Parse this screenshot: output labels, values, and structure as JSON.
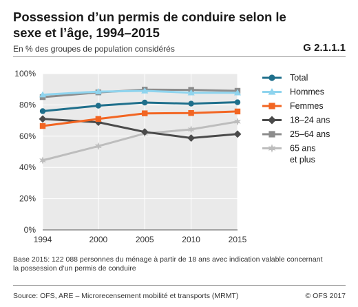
{
  "header": {
    "title": "Possession d’un permis de conduire selon le sexe et l’âge, 1994–2015",
    "subtitle": "En % des groupes de population considérés",
    "code": "G 2.1.1.1"
  },
  "footer": {
    "note_line1": "Base 2015: 122 088 personnes du ménage à partir de 18 ans avec indication valable concernant",
    "note_line2": "la possession d’un permis de conduire",
    "source": "Source: OFS, ARE – Microrecensement mobilité et transports (MRMT)",
    "copyright": "© OFS 2017"
  },
  "chart_data": {
    "type": "line",
    "x": [
      1994,
      2000,
      2005,
      2010,
      2015
    ],
    "x_tick_labels": [
      "1994",
      "2000",
      "2005",
      "2010",
      "2015"
    ],
    "ylim": [
      0,
      100
    ],
    "y_ticks": [
      0,
      20,
      40,
      60,
      80,
      100
    ],
    "y_tick_labels": [
      "0%",
      "20%",
      "40%",
      "60%",
      "80%",
      "100%"
    ],
    "grid": true,
    "legend_position": "right",
    "series": [
      {
        "name": "Total",
        "color": "#1f6f8b",
        "marker": "circle",
        "values": [
          76,
          79.5,
          81.5,
          80.8,
          81.7
        ]
      },
      {
        "name": "Hommes",
        "color": "#8fd4ee",
        "marker": "triangle",
        "values": [
          86.5,
          88.5,
          89,
          87.8,
          87.8
        ]
      },
      {
        "name": "Femmes",
        "color": "#f26522",
        "marker": "square",
        "values": [
          66.5,
          71,
          74.6,
          74.8,
          75.8
        ]
      },
      {
        "name": "18–24 ans",
        "color": "#4a4a4a",
        "marker": "diamond",
        "values": [
          71,
          68.9,
          62.7,
          58.8,
          61.3
        ]
      },
      {
        "name": "25–64 ans",
        "color": "#8c8c8c",
        "marker": "square",
        "values": [
          85,
          88,
          89.8,
          89.6,
          89
        ]
      },
      {
        "name_lines": [
          "65 ans",
          "et plus"
        ],
        "color": "#bdbdbd",
        "marker": "star",
        "values": [
          44.5,
          53.6,
          61.7,
          64.3,
          69.3
        ]
      }
    ]
  }
}
